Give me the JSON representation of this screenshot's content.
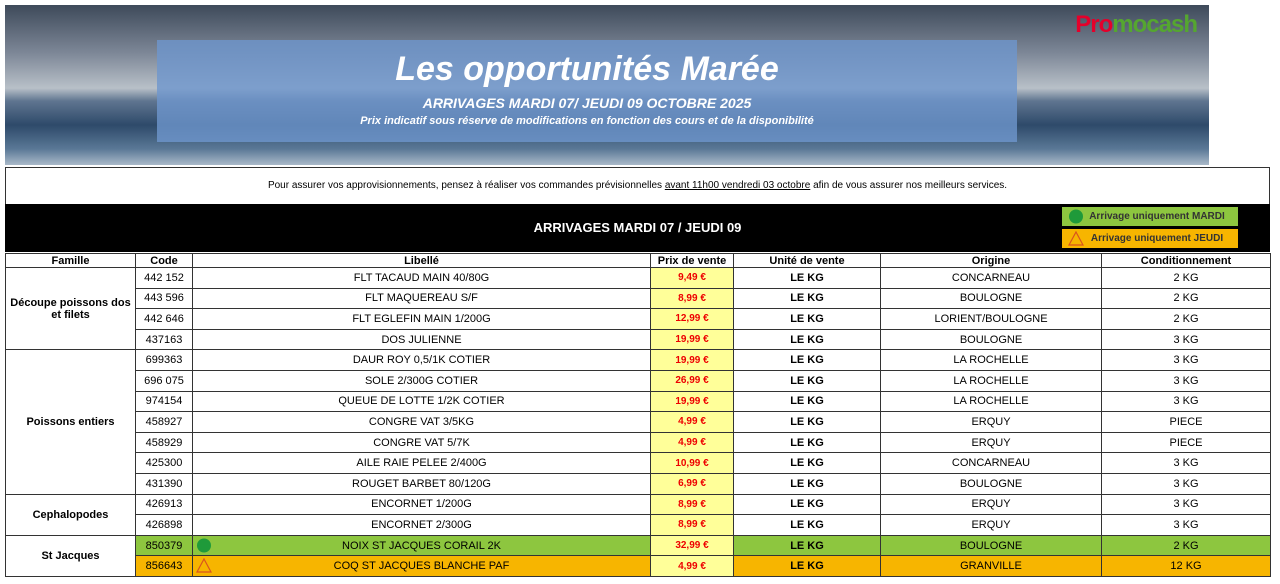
{
  "header": {
    "title": "Les opportunités Marée",
    "subtitle": "ARRIVAGES MARDI 07/ JEUDI 09 OCTOBRE 2025",
    "note": "Prix indicatif sous réserve de modifications en fonction des cours et de la disponibilité",
    "logo": {
      "first": "Pro",
      "rest": "mocash"
    }
  },
  "notice": {
    "before": "Pour assurer vos approvisionnements, pensez à réaliser vos commandes prévisionnelles ",
    "underlined": "avant 11h00 vendredi 03 octobre",
    "after": " afin de vous assurer nos meilleurs services."
  },
  "banner": {
    "title": "ARRIVAGES MARDI 07 / JEUDI 09",
    "legend": [
      {
        "label": "Arrivage uniquement MARDI",
        "color": "#8dc63f",
        "shape": "circle"
      },
      {
        "label": "Arrivage uniquement JEUDI",
        "color": "#f7b500",
        "shape": "triangle"
      }
    ]
  },
  "table": {
    "columns": [
      "Famille",
      "Code",
      "Libellé",
      "Prix de vente",
      "Unité de vente",
      "Origine",
      "Conditionnement"
    ],
    "groups": [
      {
        "family": "Découpe poissons dos et filets",
        "rows": [
          {
            "code": "442 152",
            "label": "FLT TACAUD MAIN 40/80G",
            "price": "9,49 €",
            "unit": "LE KG",
            "origin": "CONCARNEAU",
            "pack": "2 KG"
          },
          {
            "code": "443 596",
            "label": "FLT MAQUEREAU S/F",
            "price": "8,99 €",
            "unit": "LE KG",
            "origin": "BOULOGNE",
            "pack": "2 KG"
          },
          {
            "code": "442 646",
            "label": "FLT EGLEFIN MAIN 1/200G",
            "price": "12,99 €",
            "unit": "LE KG",
            "origin": "LORIENT/BOULOGNE",
            "pack": "2 KG"
          },
          {
            "code": "437163",
            "label": "DOS JULIENNE",
            "price": "19,99 €",
            "unit": "LE KG",
            "origin": "BOULOGNE",
            "pack": "3 KG"
          }
        ]
      },
      {
        "family": "Poissons entiers",
        "rows": [
          {
            "code": "699363",
            "label": "DAUR ROY 0,5/1K COTIER",
            "price": "19,99 €",
            "unit": "LE KG",
            "origin": "LA ROCHELLE",
            "pack": "3 KG"
          },
          {
            "code": "696 075",
            "label": "SOLE 2/300G COTIER",
            "price": "26,99 €",
            "unit": "LE KG",
            "origin": "LA ROCHELLE",
            "pack": "3 KG"
          },
          {
            "code": "974154",
            "label": "QUEUE DE LOTTE 1/2K COTIER",
            "price": "19,99 €",
            "unit": "LE KG",
            "origin": "LA ROCHELLE",
            "pack": "3 KG"
          },
          {
            "code": "458927",
            "label": "CONGRE VAT 3/5KG",
            "price": "4,99 €",
            "unit": "LE KG",
            "origin": "ERQUY",
            "pack": "PIECE"
          },
          {
            "code": "458929",
            "label": "CONGRE VAT 5/7K",
            "price": "4,99 €",
            "unit": "LE KG",
            "origin": "ERQUY",
            "pack": "PIECE"
          },
          {
            "code": "425300",
            "label": "AILE RAIE PELEE 2/400G",
            "price": "10,99 €",
            "unit": "LE KG",
            "origin": "CONCARNEAU",
            "pack": "3 KG"
          },
          {
            "code": "431390",
            "label": "ROUGET BARBET 80/120G",
            "price": "6,99 €",
            "unit": "LE KG",
            "origin": "BOULOGNE",
            "pack": "3 KG"
          }
        ]
      },
      {
        "family": "Cephalopodes",
        "rows": [
          {
            "code": "426913",
            "label": "ENCORNET 1/200G",
            "price": "8,99 €",
            "unit": "LE KG",
            "origin": "ERQUY",
            "pack": "3 KG"
          },
          {
            "code": "426898",
            "label": "ENCORNET 2/300G",
            "price": "8,99 €",
            "unit": "LE KG",
            "origin": "ERQUY",
            "pack": "3 KG"
          }
        ]
      },
      {
        "family": "St Jacques",
        "rows": [
          {
            "code": "850379",
            "label": "NOIX ST JACQUES CORAIL 2K",
            "price": "32,99 €",
            "unit": "LE KG",
            "origin": "BOULOGNE",
            "pack": "2 KG",
            "color": "#8dc63f"
          },
          {
            "code": "856643",
            "label": "COQ ST JACQUES BLANCHE PAF",
            "price": "4,99 €",
            "unit": "LE KG",
            "origin": "GRANVILLE",
            "pack": "12 KG",
            "color": "#f7b500"
          }
        ]
      }
    ]
  }
}
